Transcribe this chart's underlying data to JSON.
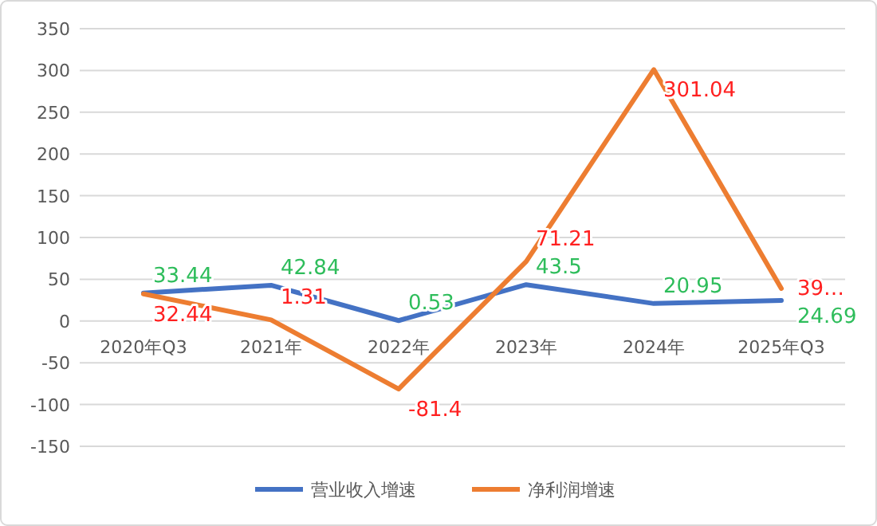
{
  "chart_data": {
    "type": "line",
    "categories": [
      "2020年Q3",
      "2021年",
      "2022年",
      "2023年",
      "2024年",
      "2025年Q3"
    ],
    "series": [
      {
        "name": "营业收入增速",
        "color": "#4472c4",
        "values": [
          33.44,
          42.84,
          0.53,
          43.5,
          20.95,
          24.69
        ],
        "value_labels": [
          "33.44",
          "42.84",
          "0.53",
          "43.5",
          "20.95",
          "24.69"
        ]
      },
      {
        "name": "净利润增速",
        "color": "#ed7d31",
        "values": [
          32.44,
          1.31,
          -81.4,
          71.21,
          301.04,
          39
        ],
        "value_labels": [
          "32.44",
          "1.31",
          "-81.4",
          "71.21",
          "301.04",
          "39…"
        ]
      }
    ],
    "ylim": [
      -150,
      350
    ],
    "yticks": [
      -150,
      -100,
      -50,
      0,
      50,
      100,
      150,
      200,
      250,
      300,
      350
    ],
    "grid": "y",
    "legend": "bottom",
    "marker": "none",
    "line_style": "solid"
  }
}
